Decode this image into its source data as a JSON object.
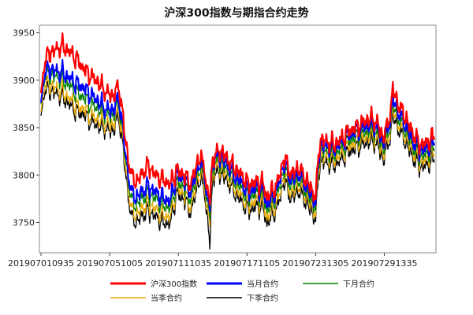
{
  "chart_data": {
    "type": "line",
    "title": "沪深300指数与期指合约走势",
    "xlabel": "",
    "ylabel": "",
    "ylim": [
      3718,
      3958
    ],
    "yticks": [
      3750,
      3800,
      3850,
      3900,
      3950
    ],
    "x_tick_labels": [
      "201907010935",
      "201907051005",
      "201907111035",
      "201907171105",
      "201907231305",
      "201907291335"
    ],
    "x_tick_index": [
      0,
      96,
      192,
      288,
      384,
      480
    ],
    "n_points": 551,
    "grid": false,
    "legend_position": "bottom",
    "series": [
      {
        "name": "沪深300指数",
        "color": "#ff0000",
        "anchor_index": [
          0,
          4,
          10,
          20,
          30,
          40,
          50,
          60,
          70,
          80,
          90,
          100,
          108,
          112,
          118,
          126,
          134,
          140,
          150,
          160,
          170,
          180,
          190,
          200,
          210,
          220,
          228,
          232,
          236,
          240,
          250,
          260,
          270,
          280,
          290,
          300,
          310,
          316,
          322,
          330,
          340,
          350,
          360,
          370,
          380,
          384,
          390,
          400,
          410,
          420,
          430,
          440,
          450,
          460,
          470,
          478,
          486,
          492,
          500,
          510,
          520,
          530,
          540,
          550
        ],
        "anchor_value": [
          3880,
          3916,
          3928,
          3932,
          3936,
          3930,
          3922,
          3912,
          3904,
          3898,
          3888,
          3883,
          3893,
          3880,
          3836,
          3800,
          3792,
          3800,
          3810,
          3800,
          3795,
          3790,
          3805,
          3800,
          3790,
          3818,
          3812,
          3783,
          3775,
          3818,
          3826,
          3818,
          3808,
          3800,
          3790,
          3792,
          3792,
          3776,
          3782,
          3790,
          3818,
          3800,
          3808,
          3796,
          3782,
          3778,
          3838,
          3835,
          3832,
          3838,
          3846,
          3850,
          3855,
          3860,
          3855,
          3840,
          3855,
          3890,
          3874,
          3860,
          3844,
          3832,
          3834,
          3842
        ]
      },
      {
        "name": "当月合约",
        "color": "#0000ff",
        "anchor_index": [
          0,
          4,
          10,
          20,
          30,
          40,
          50,
          60,
          70,
          80,
          90,
          100,
          108,
          112,
          118,
          126,
          134,
          140,
          150,
          160,
          170,
          180,
          190,
          200,
          210,
          220,
          228,
          232,
          236,
          240,
          250,
          260,
          270,
          280,
          290,
          300,
          310,
          316,
          322,
          330,
          340,
          350,
          360,
          370,
          380,
          384,
          390,
          400,
          410,
          420,
          430,
          440,
          450,
          460,
          470,
          478,
          486,
          492,
          500,
          510,
          520,
          530,
          540,
          550
        ],
        "anchor_value": [
          3870,
          3906,
          3912,
          3910,
          3908,
          3902,
          3896,
          3892,
          3884,
          3878,
          3870,
          3868,
          3880,
          3866,
          3822,
          3782,
          3776,
          3782,
          3788,
          3782,
          3776,
          3772,
          3800,
          3795,
          3782,
          3812,
          3806,
          3776,
          3768,
          3816,
          3820,
          3812,
          3800,
          3792,
          3782,
          3786,
          3786,
          3768,
          3776,
          3784,
          3812,
          3794,
          3802,
          3790,
          3776,
          3772,
          3832,
          3830,
          3828,
          3834,
          3842,
          3846,
          3850,
          3854,
          3850,
          3834,
          3850,
          3880,
          3866,
          3852,
          3836,
          3826,
          3828,
          3836
        ]
      },
      {
        "name": "下月合约",
        "color": "#008000",
        "anchor_index": [
          0,
          4,
          10,
          20,
          30,
          40,
          50,
          60,
          70,
          80,
          90,
          100,
          108,
          112,
          118,
          126,
          134,
          140,
          150,
          160,
          170,
          180,
          190,
          200,
          210,
          220,
          228,
          232,
          236,
          240,
          250,
          260,
          270,
          280,
          290,
          300,
          310,
          316,
          322,
          330,
          340,
          350,
          360,
          370,
          380,
          384,
          390,
          400,
          410,
          420,
          430,
          440,
          450,
          460,
          470,
          478,
          486,
          492,
          500,
          510,
          520,
          530,
          540,
          550
        ],
        "anchor_value": [
          3868,
          3902,
          3906,
          3904,
          3900,
          3894,
          3886,
          3882,
          3874,
          3870,
          3864,
          3862,
          3874,
          3860,
          3816,
          3774,
          3768,
          3775,
          3780,
          3775,
          3768,
          3765,
          3792,
          3788,
          3775,
          3806,
          3800,
          3770,
          3760,
          3810,
          3814,
          3806,
          3795,
          3786,
          3776,
          3780,
          3780,
          3762,
          3770,
          3778,
          3806,
          3788,
          3796,
          3784,
          3770,
          3766,
          3826,
          3824,
          3822,
          3828,
          3836,
          3840,
          3844,
          3848,
          3844,
          3828,
          3844,
          3874,
          3860,
          3846,
          3830,
          3820,
          3822,
          3830
        ]
      },
      {
        "name": "当季合约",
        "color": "#e6a800",
        "anchor_index": [
          0,
          4,
          10,
          20,
          30,
          40,
          50,
          60,
          70,
          80,
          90,
          100,
          108,
          112,
          118,
          126,
          134,
          140,
          150,
          160,
          170,
          180,
          190,
          200,
          210,
          220,
          228,
          232,
          236,
          240,
          250,
          260,
          270,
          280,
          290,
          300,
          310,
          316,
          322,
          330,
          340,
          350,
          360,
          370,
          380,
          384,
          390,
          400,
          410,
          420,
          430,
          440,
          450,
          460,
          470,
          478,
          486,
          492,
          500,
          510,
          520,
          530,
          540,
          550
        ],
        "anchor_value": [
          3860,
          3894,
          3896,
          3892,
          3888,
          3880,
          3872,
          3870,
          3862,
          3858,
          3854,
          3852,
          3866,
          3852,
          3808,
          3764,
          3758,
          3764,
          3770,
          3764,
          3758,
          3755,
          3786,
          3780,
          3766,
          3800,
          3794,
          3762,
          3752,
          3804,
          3808,
          3800,
          3788,
          3778,
          3768,
          3772,
          3772,
          3754,
          3762,
          3770,
          3800,
          3780,
          3790,
          3778,
          3764,
          3760,
          3820,
          3818,
          3816,
          3822,
          3830,
          3834,
          3838,
          3842,
          3838,
          3822,
          3838,
          3868,
          3854,
          3840,
          3824,
          3814,
          3816,
          3824
        ]
      },
      {
        "name": "下季合约",
        "color": "#000000",
        "anchor_index": [
          0,
          4,
          10,
          20,
          30,
          40,
          50,
          60,
          70,
          80,
          90,
          100,
          108,
          112,
          118,
          126,
          134,
          140,
          150,
          160,
          170,
          180,
          190,
          200,
          210,
          220,
          228,
          232,
          236,
          240,
          250,
          260,
          270,
          280,
          290,
          300,
          310,
          316,
          322,
          330,
          340,
          350,
          360,
          370,
          380,
          384,
          390,
          400,
          410,
          420,
          430,
          440,
          450,
          460,
          470,
          478,
          486,
          492,
          500,
          510,
          520,
          530,
          540,
          550
        ],
        "anchor_value": [
          3856,
          3888,
          3890,
          3886,
          3882,
          3874,
          3866,
          3864,
          3856,
          3852,
          3848,
          3846,
          3860,
          3846,
          3802,
          3756,
          3750,
          3756,
          3762,
          3756,
          3750,
          3748,
          3780,
          3774,
          3760,
          3794,
          3788,
          3756,
          3728,
          3798,
          3802,
          3794,
          3782,
          3772,
          3762,
          3766,
          3766,
          3748,
          3756,
          3764,
          3794,
          3774,
          3784,
          3772,
          3758,
          3754,
          3814,
          3812,
          3810,
          3816,
          3824,
          3828,
          3832,
          3836,
          3832,
          3816,
          3832,
          3862,
          3848,
          3834,
          3818,
          3808,
          3810,
          3818
        ]
      }
    ]
  }
}
